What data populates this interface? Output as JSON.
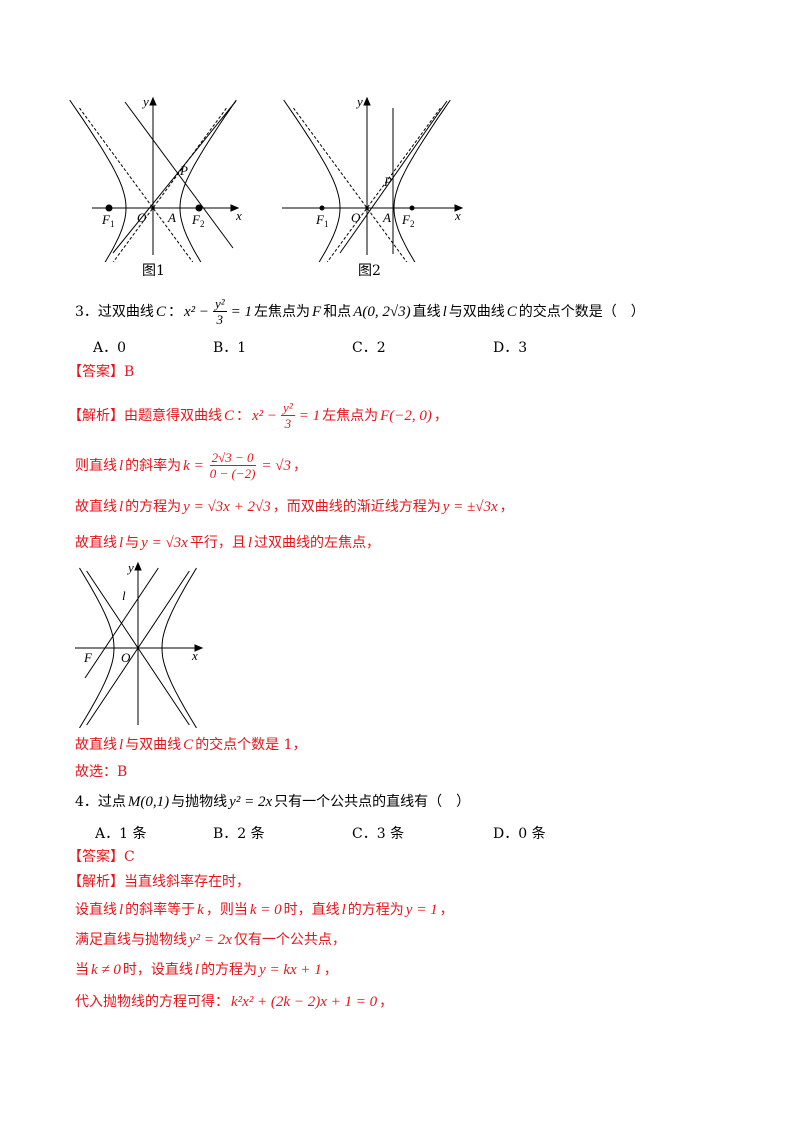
{
  "figures": {
    "fig1": {
      "caption": "图1",
      "labels": {
        "y": "y",
        "x": "x",
        "O": "O",
        "A": "A",
        "P": "P",
        "F1": "F",
        "F1_sub": "1",
        "F2": "F",
        "F2_sub": "2"
      }
    },
    "fig2": {
      "caption": "图2",
      "labels": {
        "y": "y",
        "x": "x",
        "O": "O",
        "A": "A",
        "P": "P",
        "F1": "F",
        "F1_sub": "1",
        "F2": "F",
        "F2_sub": "2"
      }
    },
    "fig3": {
      "labels": {
        "y": "y",
        "x": "x",
        "O": "O",
        "F": "F",
        "l": "l"
      }
    }
  },
  "q3": {
    "stem": [
      {
        "t": "3．过双曲线"
      },
      {
        "m": "C"
      },
      {
        "t": "："
      },
      {
        "m": "x² −"
      },
      {
        "num": "y²",
        "den": "3"
      },
      {
        "m": "= 1"
      },
      {
        "t": "左焦点为"
      },
      {
        "m": "F"
      },
      {
        "t": "和点"
      },
      {
        "m": "A(0, 2√3)"
      },
      {
        "t": "直线"
      },
      {
        "m": "l"
      },
      {
        "t": "与双曲线"
      },
      {
        "m": "C"
      },
      {
        "t": "的交点个数是（　）"
      }
    ],
    "options": [
      "A．0",
      "B．1",
      "C．2",
      "D．3"
    ],
    "answer": [
      {
        "t": "【答案】B"
      }
    ],
    "analysis": [
      [
        {
          "t": "【解析】由题意得双曲线"
        },
        {
          "m": "C"
        },
        {
          "t": "："
        },
        {
          "m": "x² −"
        },
        {
          "num": "y²",
          "den": "3"
        },
        {
          "m": "= 1"
        },
        {
          "t": "左焦点为"
        },
        {
          "m": "F(−2, 0)"
        },
        {
          "t": "，"
        }
      ],
      [
        {
          "t": "则直线"
        },
        {
          "m": "l"
        },
        {
          "t": "的斜率为"
        },
        {
          "m": "k ="
        },
        {
          "num": "2√3 − 0",
          "den": "0 − (−2)"
        },
        {
          "m": "= √3"
        },
        {
          "t": "，"
        }
      ],
      [
        {
          "t": "故直线"
        },
        {
          "m": "l"
        },
        {
          "t": "的方程为"
        },
        {
          "m": "y = √3x + 2√3"
        },
        {
          "t": "，而双曲线的渐近线方程为"
        },
        {
          "m": "y = ±√3x"
        },
        {
          "t": "，"
        }
      ],
      [
        {
          "t": "故直线"
        },
        {
          "m": "l"
        },
        {
          "t": "与"
        },
        {
          "m": "y = √3x"
        },
        {
          "t": "平行，且"
        },
        {
          "m": "l"
        },
        {
          "t": "过双曲线的左焦点，"
        }
      ]
    ],
    "conclusion": [
      [
        {
          "t": "故直线"
        },
        {
          "m": "l"
        },
        {
          "t": "与双曲线"
        },
        {
          "m": "C"
        },
        {
          "t": "的交点个数是 1，"
        }
      ],
      [
        {
          "t": "故选：B"
        }
      ]
    ]
  },
  "q4": {
    "stem": [
      {
        "t": "4．过点"
      },
      {
        "m": "M(0,1)"
      },
      {
        "t": "与抛物线"
      },
      {
        "m": "y² = 2x"
      },
      {
        "t": "只有一个公共点的直线有（　）"
      }
    ],
    "options": [
      "A．1 条",
      "B．2 条",
      "C．3 条",
      "D．0 条"
    ],
    "answer": [
      {
        "t": "【答案】C"
      }
    ],
    "analysis": [
      [
        {
          "t": "【解析】当直线斜率存在时，"
        }
      ],
      [
        {
          "t": "设直线"
        },
        {
          "m": "l"
        },
        {
          "t": "的斜率等于"
        },
        {
          "m": "k"
        },
        {
          "t": "，则当 "
        },
        {
          "m": "k = 0"
        },
        {
          "t": "时，直线"
        },
        {
          "m": "l"
        },
        {
          "t": "的方程为"
        },
        {
          "m": "y = 1"
        },
        {
          "t": "，"
        }
      ],
      [
        {
          "t": "满足直线与抛物线"
        },
        {
          "m": "y² = 2x"
        },
        {
          "t": "仅有一个公共点，"
        }
      ],
      [
        {
          "t": "当"
        },
        {
          "m": "k ≠ 0"
        },
        {
          "t": "时，设直线"
        },
        {
          "m": "l"
        },
        {
          "t": "的方程为"
        },
        {
          "m": "y = kx + 1"
        },
        {
          "t": "，"
        }
      ],
      [
        {
          "t": "代入抛物线的方程可得："
        },
        {
          "m": "k²x² + (2k − 2)x + 1 = 0"
        },
        {
          "t": "，"
        }
      ]
    ]
  },
  "colors": {
    "answer_red": "#e8141b",
    "text": "#000000"
  }
}
